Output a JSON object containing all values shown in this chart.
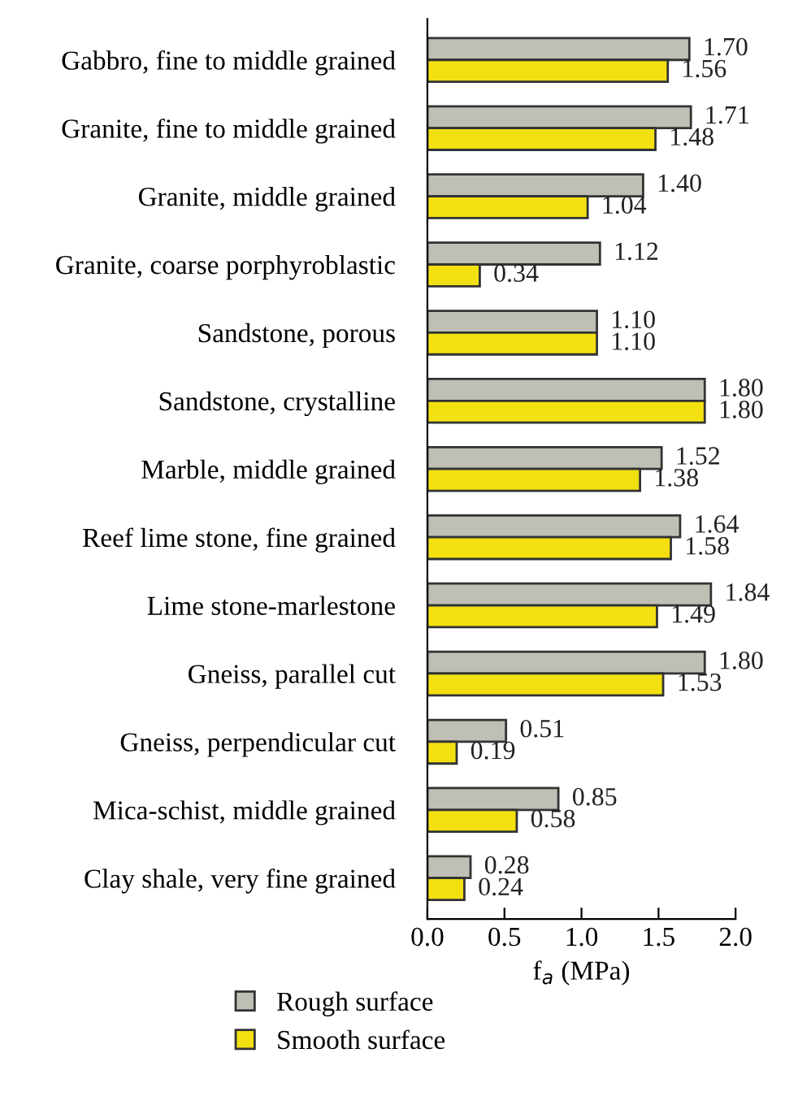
{
  "chart_data": {
    "type": "bar",
    "orientation": "horizontal",
    "categories": [
      "Gabbro, fine to middle grained",
      "Granite, fine to middle grained",
      "Granite, middle grained",
      "Granite, coarse porphyroblastic",
      "Sandstone, porous",
      "Sandstone, crystalline",
      "Marble, middle grained",
      "Reef lime stone, fine grained",
      "Lime stone-marlestone",
      "Gneiss, parallel cut",
      "Gneiss, perpendicular cut",
      "Mica-schist, middle grained",
      "Clay shale, very fine grained"
    ],
    "series": [
      {
        "name": "Rough surface",
        "color": "#bfbfb5",
        "values": [
          1.7,
          1.71,
          1.4,
          1.12,
          1.1,
          1.8,
          1.52,
          1.64,
          1.84,
          1.8,
          0.51,
          0.85,
          0.28
        ],
        "value_labels": [
          "1.70",
          "1.71",
          "1.40",
          "1.12",
          "1.10",
          "1.80",
          "1.52",
          "1.64",
          "1.84",
          "1.80",
          "0.51",
          "0.85",
          "0.28"
        ]
      },
      {
        "name": "Smooth surface",
        "color": "#f2e011",
        "values": [
          1.56,
          1.48,
          1.04,
          0.34,
          1.1,
          1.8,
          1.38,
          1.58,
          1.49,
          1.53,
          0.19,
          0.58,
          0.24
        ],
        "value_labels": [
          "1.56",
          "1.48",
          "1.04",
          "0.34",
          "1.10",
          "1.80",
          "1.38",
          "1.58",
          "1.49",
          "1.53",
          "0.19",
          "0.58",
          "0.24"
        ]
      }
    ],
    "xlim": [
      0,
      2.0
    ],
    "xticks": [
      {
        "value": 0,
        "label": "0.0"
      },
      0.5,
      {
        "value": 1,
        "label": "1.0"
      },
      1.5,
      {
        "value": 2,
        "label": "2.0"
      }
    ],
    "xlabel": "f$_{a}$ (MPa)",
    "legend": "bottom",
    "grid": false
  }
}
